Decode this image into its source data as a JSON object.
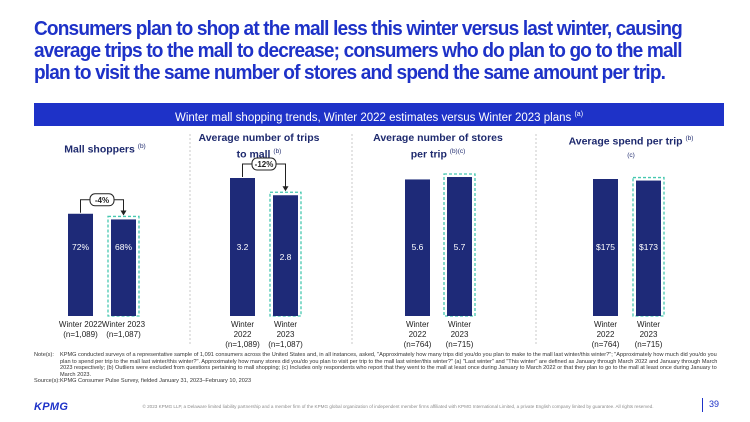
{
  "headline": "Consumers plan to shop at the mall less this winter versus last winter, causing average trips to the mall to decrease; consumers who do plan to go to the mall plan to visit the same number of stores and spend the same amount per trip.",
  "banner": {
    "text": "Winter mall shopping trends, Winter 2022 estimates versus Winter 2023 plans",
    "sup": "(a)"
  },
  "chart_data": [
    {
      "type": "bar",
      "title": "Mall shoppers",
      "title_sup": "(b)",
      "categories": [
        "Winter 2022\n(n=1,089)",
        "Winter 2023\n(n=1,087)"
      ],
      "values": [
        72,
        68
      ],
      "value_labels": [
        "72%",
        "68%"
      ],
      "change_label": "-4%"
    },
    {
      "type": "bar",
      "title": "Average number of trips to mall",
      "title_sup": "(b)",
      "categories": [
        "Winter\n2022\n(n=1,089)",
        "Winter\n2023\n(n=1,087)"
      ],
      "values": [
        3.2,
        2.8
      ],
      "value_labels": [
        "3.2",
        "2.8"
      ],
      "change_label": "-12%"
    },
    {
      "type": "bar",
      "title": "Average number of stores per trip",
      "title_sup": "(b)(c)",
      "categories": [
        "Winter\n2022\n(n=764)",
        "Winter\n2023\n(n=715)"
      ],
      "values": [
        5.6,
        5.7
      ],
      "value_labels": [
        "5.6",
        "5.7"
      ],
      "change_label": ""
    },
    {
      "type": "bar",
      "title": "Average spend per trip",
      "title_sup": "(b)(c)",
      "categories": [
        "Winter\n2022\n(n=764)",
        "Winter\n2023\n(n=715)"
      ],
      "values": [
        175,
        173
      ],
      "value_labels": [
        "$175",
        "$173"
      ],
      "change_label": ""
    }
  ],
  "notes": [
    {
      "key": "Note(s):",
      "text": "KPMG conducted surveys of a representative sample of 1,091 consumers across the United States and, in all instances, asked, \"Approximately how many trips did you/do you plan to make to the mall last winter/this winter?\"; \"Approximately how much did you/do you plan to spend per trip to the mall last winter/this winter?\". Approximately how many stores did you/do you plan to visit per trip to the mall last winter/this winter?\" (a) \"Last winter\" and \"This winter\" are defined as January through March 2022 and January through March 2023 respectively; (b) Outliers were excluded from questions pertaining to mall shopping; (c) Includes only respondents who report that they went to the mall at least once during January to March 2022 or that they plan to go to the mall at least once during January to March 2023."
    },
    {
      "key": "Source(s):",
      "text": "KPMG Consumer Pulse Survey, fielded January 31, 2023–February 10, 2023"
    }
  ],
  "footer": {
    "logo": "KPMG",
    "legal": "© 2023 KPMG LLP, a Delaware limited liability partnership and a member firm of the KPMG global organization of independent member firms affiliated with KPMG International Limited, a private English company limited by guarantee. All rights reserved.",
    "page_number": "39"
  },
  "colors": {
    "accent": "#1e32c8",
    "bar": "#1e2a78",
    "highlight_dash": "#46c8b0",
    "divider": "#c8c8c8"
  }
}
